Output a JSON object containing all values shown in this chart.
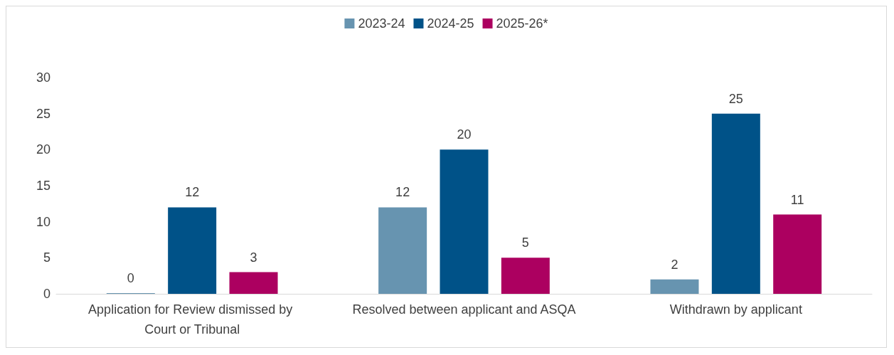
{
  "chart_data": {
    "type": "bar",
    "categories": [
      "Application for Review dismissed by Court or Tribunal",
      "Resolved between applicant and ASQA",
      "Withdrawn by applicant"
    ],
    "series": [
      {
        "name": "2023-24",
        "color": "#6794b0",
        "values": [
          0,
          12,
          2
        ]
      },
      {
        "name": "2024-25",
        "color": "#005288",
        "values": [
          12,
          20,
          25
        ]
      },
      {
        "name": "2025-26*",
        "color": "#ac0060",
        "values": [
          3,
          5,
          11
        ]
      }
    ],
    "ylim": [
      0,
      30
    ],
    "yticks": [
      0,
      5,
      10,
      15,
      20,
      25,
      30
    ],
    "grid": false,
    "legend": "top",
    "data_labels": true
  }
}
